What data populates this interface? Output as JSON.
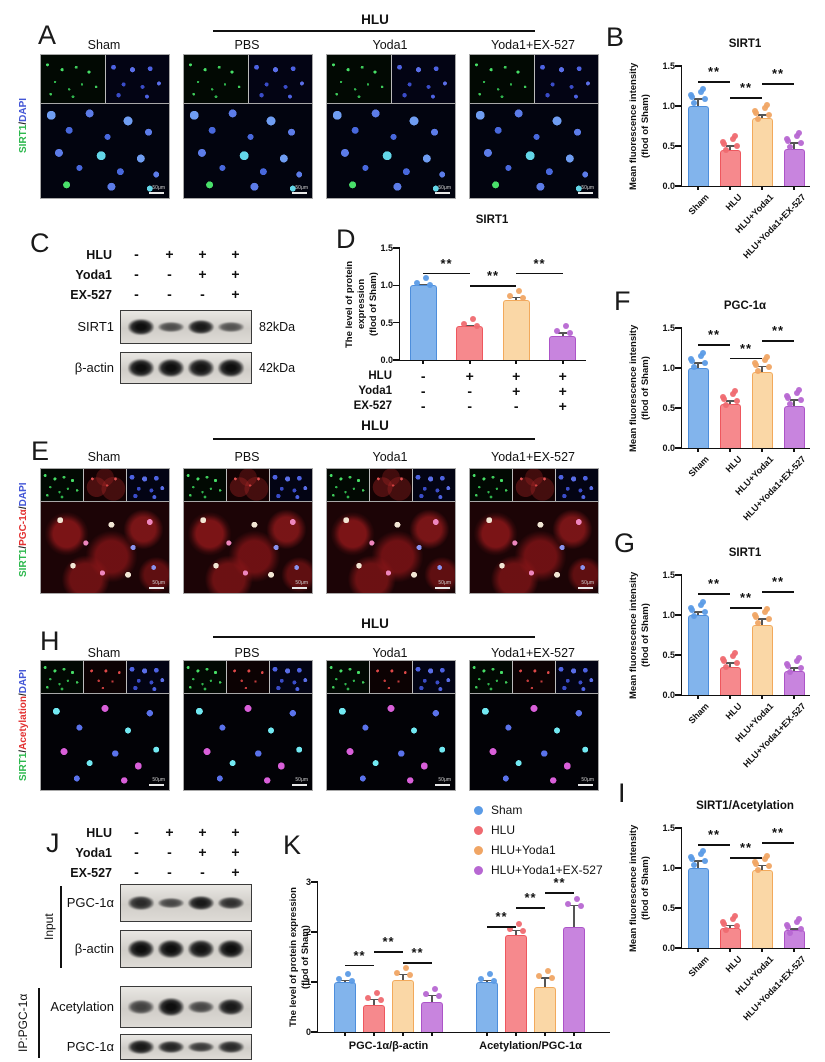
{
  "letters": {
    "A": "A",
    "B": "B",
    "C": "C",
    "D": "D",
    "E": "E",
    "F": "F",
    "G": "G",
    "H": "H",
    "I": "I",
    "J": "J",
    "K": "K"
  },
  "series": [
    {
      "name": "Sham",
      "fill": "#82B4EC",
      "edge": "#4D8EDC",
      "dot": "#5B9BE6"
    },
    {
      "name": "HLU",
      "fill": "#F6898D",
      "edge": "#EE575E",
      "dot": "#EF6A70"
    },
    {
      "name": "HLU+Yoda1",
      "fill": "#FAD7A6",
      "edge": "#F2A95B",
      "dot": "#F0A564"
    },
    {
      "name": "HLU+Yoda1+EX-527",
      "fill": "#C884DE",
      "edge": "#AC54C8",
      "dot": "#B767D2"
    }
  ],
  "panels": {
    "A": {
      "group_header": "HLU",
      "columns": [
        "Sham",
        "PBS",
        "Yoda1",
        "Yoda1+EX-527"
      ],
      "scale_text": "50μm",
      "side_label": [
        {
          "text": "SIRT1",
          "color": "#2db84d"
        },
        {
          "text": "/",
          "color": "#222"
        },
        {
          "text": "DAPI",
          "color": "#4356d6"
        }
      ]
    },
    "E": {
      "group_header": "HLU",
      "columns": [
        "Sham",
        "PBS",
        "Yoda1",
        "Yoda1+EX-527"
      ],
      "scale_text": "50μm",
      "side_label": [
        {
          "text": "SIRT1",
          "color": "#2db84d"
        },
        {
          "text": "/",
          "color": "#222"
        },
        {
          "text": "PGC-1α",
          "color": "#e23131"
        },
        {
          "text": "/",
          "color": "#222"
        },
        {
          "text": "DAPI",
          "color": "#4356d6"
        }
      ]
    },
    "H": {
      "group_header": "HLU",
      "columns": [
        "Sham",
        "PBS",
        "Yoda1",
        "Yoda1+EX-527"
      ],
      "scale_text": "50μm",
      "side_label": [
        {
          "text": "SIRT1",
          "color": "#2db84d"
        },
        {
          "text": "/",
          "color": "#222"
        },
        {
          "text": "Acetylation",
          "color": "#e23131"
        },
        {
          "text": "/",
          "color": "#222"
        },
        {
          "text": "DAPI",
          "color": "#4356d6"
        }
      ]
    },
    "C": {
      "treatments": [
        {
          "label": "HLU",
          "cells": [
            "-",
            "+",
            "+",
            "+"
          ]
        },
        {
          "label": "Yoda1",
          "cells": [
            "-",
            "-",
            "+",
            "+"
          ]
        },
        {
          "label": "EX-527",
          "cells": [
            "-",
            "-",
            "-",
            "+"
          ]
        }
      ],
      "bands": [
        {
          "label": "SIRT1",
          "kda": "82kDa",
          "intensities": [
            1.0,
            0.45,
            0.9,
            0.4
          ]
        },
        {
          "label": "β-actin",
          "kda": "42kDa",
          "intensities": [
            1.0,
            1.0,
            0.95,
            1.0
          ]
        }
      ]
    },
    "J": {
      "treatments": [
        {
          "label": "HLU",
          "cells": [
            "-",
            "+",
            "+",
            "+"
          ]
        },
        {
          "label": "Yoda1",
          "cells": [
            "-",
            "-",
            "+",
            "+"
          ]
        },
        {
          "label": "EX-527",
          "cells": [
            "-",
            "-",
            "-",
            "+"
          ]
        }
      ],
      "groups": [
        {
          "label": "Input",
          "bands": [
            {
              "label": "PGC-1α",
              "intensities": [
                0.75,
                0.5,
                0.9,
                0.7
              ]
            },
            {
              "label": "β-actin",
              "intensities": [
                1.0,
                1.0,
                0.95,
                1.0
              ]
            }
          ]
        },
        {
          "label": "IP:PGC-1α",
          "bands": [
            {
              "label": "Acetylation",
              "intensities": [
                0.55,
                1.0,
                0.5,
                0.9
              ]
            },
            {
              "label": "PGC-1α",
              "intensities": [
                0.9,
                0.8,
                0.6,
                0.75
              ]
            }
          ]
        }
      ]
    }
  },
  "chart_data": {
    "B": {
      "type": "bar",
      "title": "SIRT1",
      "ylabel": [
        "Mean fluorescence intensity",
        "(flod of Sham)"
      ],
      "ylim": [
        0,
        1.5
      ],
      "yticks": [
        "0.0",
        "0.5",
        "1.0",
        "1.5"
      ],
      "categories": [
        "Sham",
        "HLU",
        "HLU+Yoda1",
        "HLU+Yoda1+EX-527"
      ],
      "values": [
        1.0,
        0.45,
        0.85,
        0.46
      ],
      "errors": [
        0.1,
        0.06,
        0.05,
        0.09
      ],
      "n_points": 6,
      "sig": [
        {
          "a": 0,
          "b": 1,
          "y": 1.31,
          "label": "**"
        },
        {
          "a": 1,
          "b": 2,
          "y": 1.11,
          "label": "**"
        },
        {
          "a": 2,
          "b": 3,
          "y": 1.29,
          "label": "**"
        }
      ]
    },
    "D": {
      "type": "bar",
      "title": "SIRT1",
      "ylabel": [
        "The level of protein expression",
        "(flod of Sham)"
      ],
      "ylim": [
        0,
        1.5
      ],
      "yticks": [
        "0.0",
        "0.5",
        "1.0",
        "1.5"
      ],
      "categories": [
        "Sham",
        "HLU",
        "HLU+Yoda1",
        "HLU+Yoda1+EX-527"
      ],
      "values": [
        1.0,
        0.45,
        0.8,
        0.32
      ],
      "errors": [
        0.02,
        0.02,
        0.05,
        0.05
      ],
      "n_points": 3,
      "sig": [
        {
          "a": 0,
          "b": 1,
          "y": 1.17,
          "label": "**"
        },
        {
          "a": 1,
          "b": 2,
          "y": 1.0,
          "label": "**"
        },
        {
          "a": 2,
          "b": 3,
          "y": 1.17,
          "label": "**"
        }
      ],
      "xtable": [
        {
          "label": "HLU",
          "cells": [
            "-",
            "+",
            "+",
            "+"
          ]
        },
        {
          "label": "Yoda1",
          "cells": [
            "-",
            "-",
            "+",
            "+"
          ]
        },
        {
          "label": "EX-527",
          "cells": [
            "-",
            "-",
            "-",
            "+"
          ]
        }
      ]
    },
    "F": {
      "type": "bar",
      "title": "PGC-1α",
      "ylabel": [
        "Mean fluorescence intensity",
        "(flod of Sham)"
      ],
      "ylim": [
        0,
        1.5
      ],
      "yticks": [
        "0.0",
        "0.5",
        "1.0",
        "1.5"
      ],
      "categories": [
        "Sham",
        "HLU",
        "HLU+Yoda1",
        "HLU+Yoda1+EX-527"
      ],
      "values": [
        1.0,
        0.55,
        0.95,
        0.53
      ],
      "errors": [
        0.07,
        0.05,
        0.08,
        0.08
      ],
      "n_points": 6,
      "sig": [
        {
          "a": 0,
          "b": 1,
          "y": 1.3,
          "label": "**"
        },
        {
          "a": 1,
          "b": 2,
          "y": 1.13,
          "label": "**"
        },
        {
          "a": 2,
          "b": 3,
          "y": 1.35,
          "label": "**"
        }
      ]
    },
    "G": {
      "type": "bar",
      "title": "SIRT1",
      "ylabel": [
        "Mean fluorescence intensity",
        "(flod of Sham)"
      ],
      "ylim": [
        0,
        1.5
      ],
      "yticks": [
        "0.0",
        "0.5",
        "1.0",
        "1.5"
      ],
      "categories": [
        "Sham",
        "HLU",
        "HLU+Yoda1",
        "HLU+Yoda1+EX-527"
      ],
      "values": [
        1.0,
        0.35,
        0.88,
        0.3
      ],
      "errors": [
        0.05,
        0.06,
        0.08,
        0.05
      ],
      "n_points": 6,
      "sig": [
        {
          "a": 0,
          "b": 1,
          "y": 1.27,
          "label": "**"
        },
        {
          "a": 1,
          "b": 2,
          "y": 1.1,
          "label": "**"
        },
        {
          "a": 2,
          "b": 3,
          "y": 1.3,
          "label": "**"
        }
      ]
    },
    "I": {
      "type": "bar",
      "title": "SIRT1/Acetylation",
      "ylabel": [
        "Mean fluorescence intensity",
        "(flod of Sham)"
      ],
      "ylim": [
        0,
        1.5
      ],
      "yticks": [
        "0.0",
        "0.5",
        "1.0",
        "1.5"
      ],
      "categories": [
        "Sham",
        "HLU",
        "HLU+Yoda1",
        "HLU+Yoda1+EX-527"
      ],
      "values": [
        1.0,
        0.25,
        0.97,
        0.22
      ],
      "errors": [
        0.1,
        0.04,
        0.07,
        0.03
      ],
      "n_points": 6,
      "sig": [
        {
          "a": 0,
          "b": 1,
          "y": 1.3,
          "label": "**"
        },
        {
          "a": 1,
          "b": 2,
          "y": 1.14,
          "label": "**"
        },
        {
          "a": 2,
          "b": 3,
          "y": 1.32,
          "label": "**"
        }
      ]
    },
    "K": {
      "type": "bar",
      "title": "",
      "ylabel": [
        "The level of protein expression",
        "(flod of Sham)"
      ],
      "ylim": [
        0,
        3
      ],
      "yticks": [
        "0",
        "1",
        "2",
        "3"
      ],
      "groups": [
        "PGC-1α/β-actin",
        "Acetylation/PGC-1α"
      ],
      "series": [
        {
          "name": "Sham",
          "values": [
            1.0,
            1.0
          ],
          "errors": [
            0.05,
            0.05
          ]
        },
        {
          "name": "HLU",
          "values": [
            0.55,
            1.95
          ],
          "errors": [
            0.12,
            0.1
          ]
        },
        {
          "name": "HLU+Yoda1",
          "values": [
            1.05,
            0.9
          ],
          "errors": [
            0.12,
            0.2
          ]
        },
        {
          "name": "HLU+Yoda1+EX-527",
          "values": [
            0.6,
            2.1
          ],
          "errors": [
            0.15,
            0.45
          ]
        }
      ],
      "n_points": 3,
      "sig": [
        {
          "a": 0,
          "b": 1,
          "y": 1.35,
          "label": "**"
        },
        {
          "a": 1,
          "b": 2,
          "y": 1.62,
          "label": "**"
        },
        {
          "a": 2,
          "b": 3,
          "y": 1.4,
          "label": "**"
        },
        {
          "a": 4,
          "b": 5,
          "y": 2.12,
          "label": "**"
        },
        {
          "a": 5,
          "b": 6,
          "y": 2.5,
          "label": "**"
        },
        {
          "a": 6,
          "b": 7,
          "y": 2.8,
          "label": "**"
        }
      ],
      "legend_position": "top-right"
    }
  },
  "legend": {
    "items": [
      "Sham",
      "HLU",
      "HLU+Yoda1",
      "HLU+Yoda1+EX-527"
    ]
  }
}
